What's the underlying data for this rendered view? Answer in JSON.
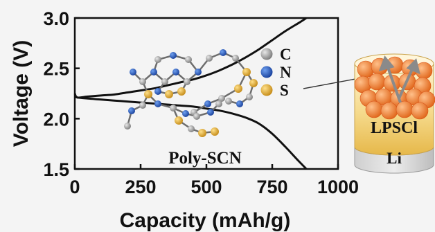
{
  "chart_data": {
    "type": "line",
    "title": "",
    "xlabel": "Capacity (mAh/g)",
    "ylabel": "Voltage (V)",
    "xlim": [
      0,
      1000
    ],
    "ylim": [
      1.5,
      3.0
    ],
    "xticks": [
      "0",
      "250",
      "500",
      "750",
      "1000"
    ],
    "yticks": [
      "1.5",
      "2.0",
      "2.5",
      "3.0"
    ],
    "grid": false,
    "series": [
      {
        "x": [
          0,
          10,
          50,
          100,
          150,
          200,
          250,
          300,
          350,
          400,
          450,
          500,
          550,
          600,
          650,
          700,
          750,
          800,
          850,
          880
        ],
        "y": [
          2.22,
          2.21,
          2.2,
          2.19,
          2.18,
          2.17,
          2.16,
          2.15,
          2.14,
          2.13,
          2.12,
          2.1,
          2.08,
          2.05,
          2.01,
          1.95,
          1.85,
          1.72,
          1.58,
          1.5
        ]
      },
      {
        "x": [
          0,
          10,
          50,
          100,
          150,
          200,
          250,
          300,
          350,
          400,
          450,
          500,
          550,
          600,
          650,
          700,
          750,
          800,
          850,
          880
        ],
        "y": [
          2.25,
          2.21,
          2.22,
          2.23,
          2.24,
          2.26,
          2.28,
          2.3,
          2.33,
          2.36,
          2.39,
          2.43,
          2.48,
          2.54,
          2.61,
          2.69,
          2.78,
          2.87,
          2.95,
          3.0
        ]
      }
    ],
    "annotations": [
      "Poly-SCN"
    ]
  },
  "legend": {
    "items": [
      {
        "label": "C",
        "color": "#9c9c9c"
      },
      {
        "label": "N",
        "color": "#1f5fd0"
      },
      {
        "label": "S",
        "color": "#e6b23a"
      }
    ]
  },
  "battery": {
    "electrolyte_label": "LPSCl",
    "anode_label": "Li"
  }
}
